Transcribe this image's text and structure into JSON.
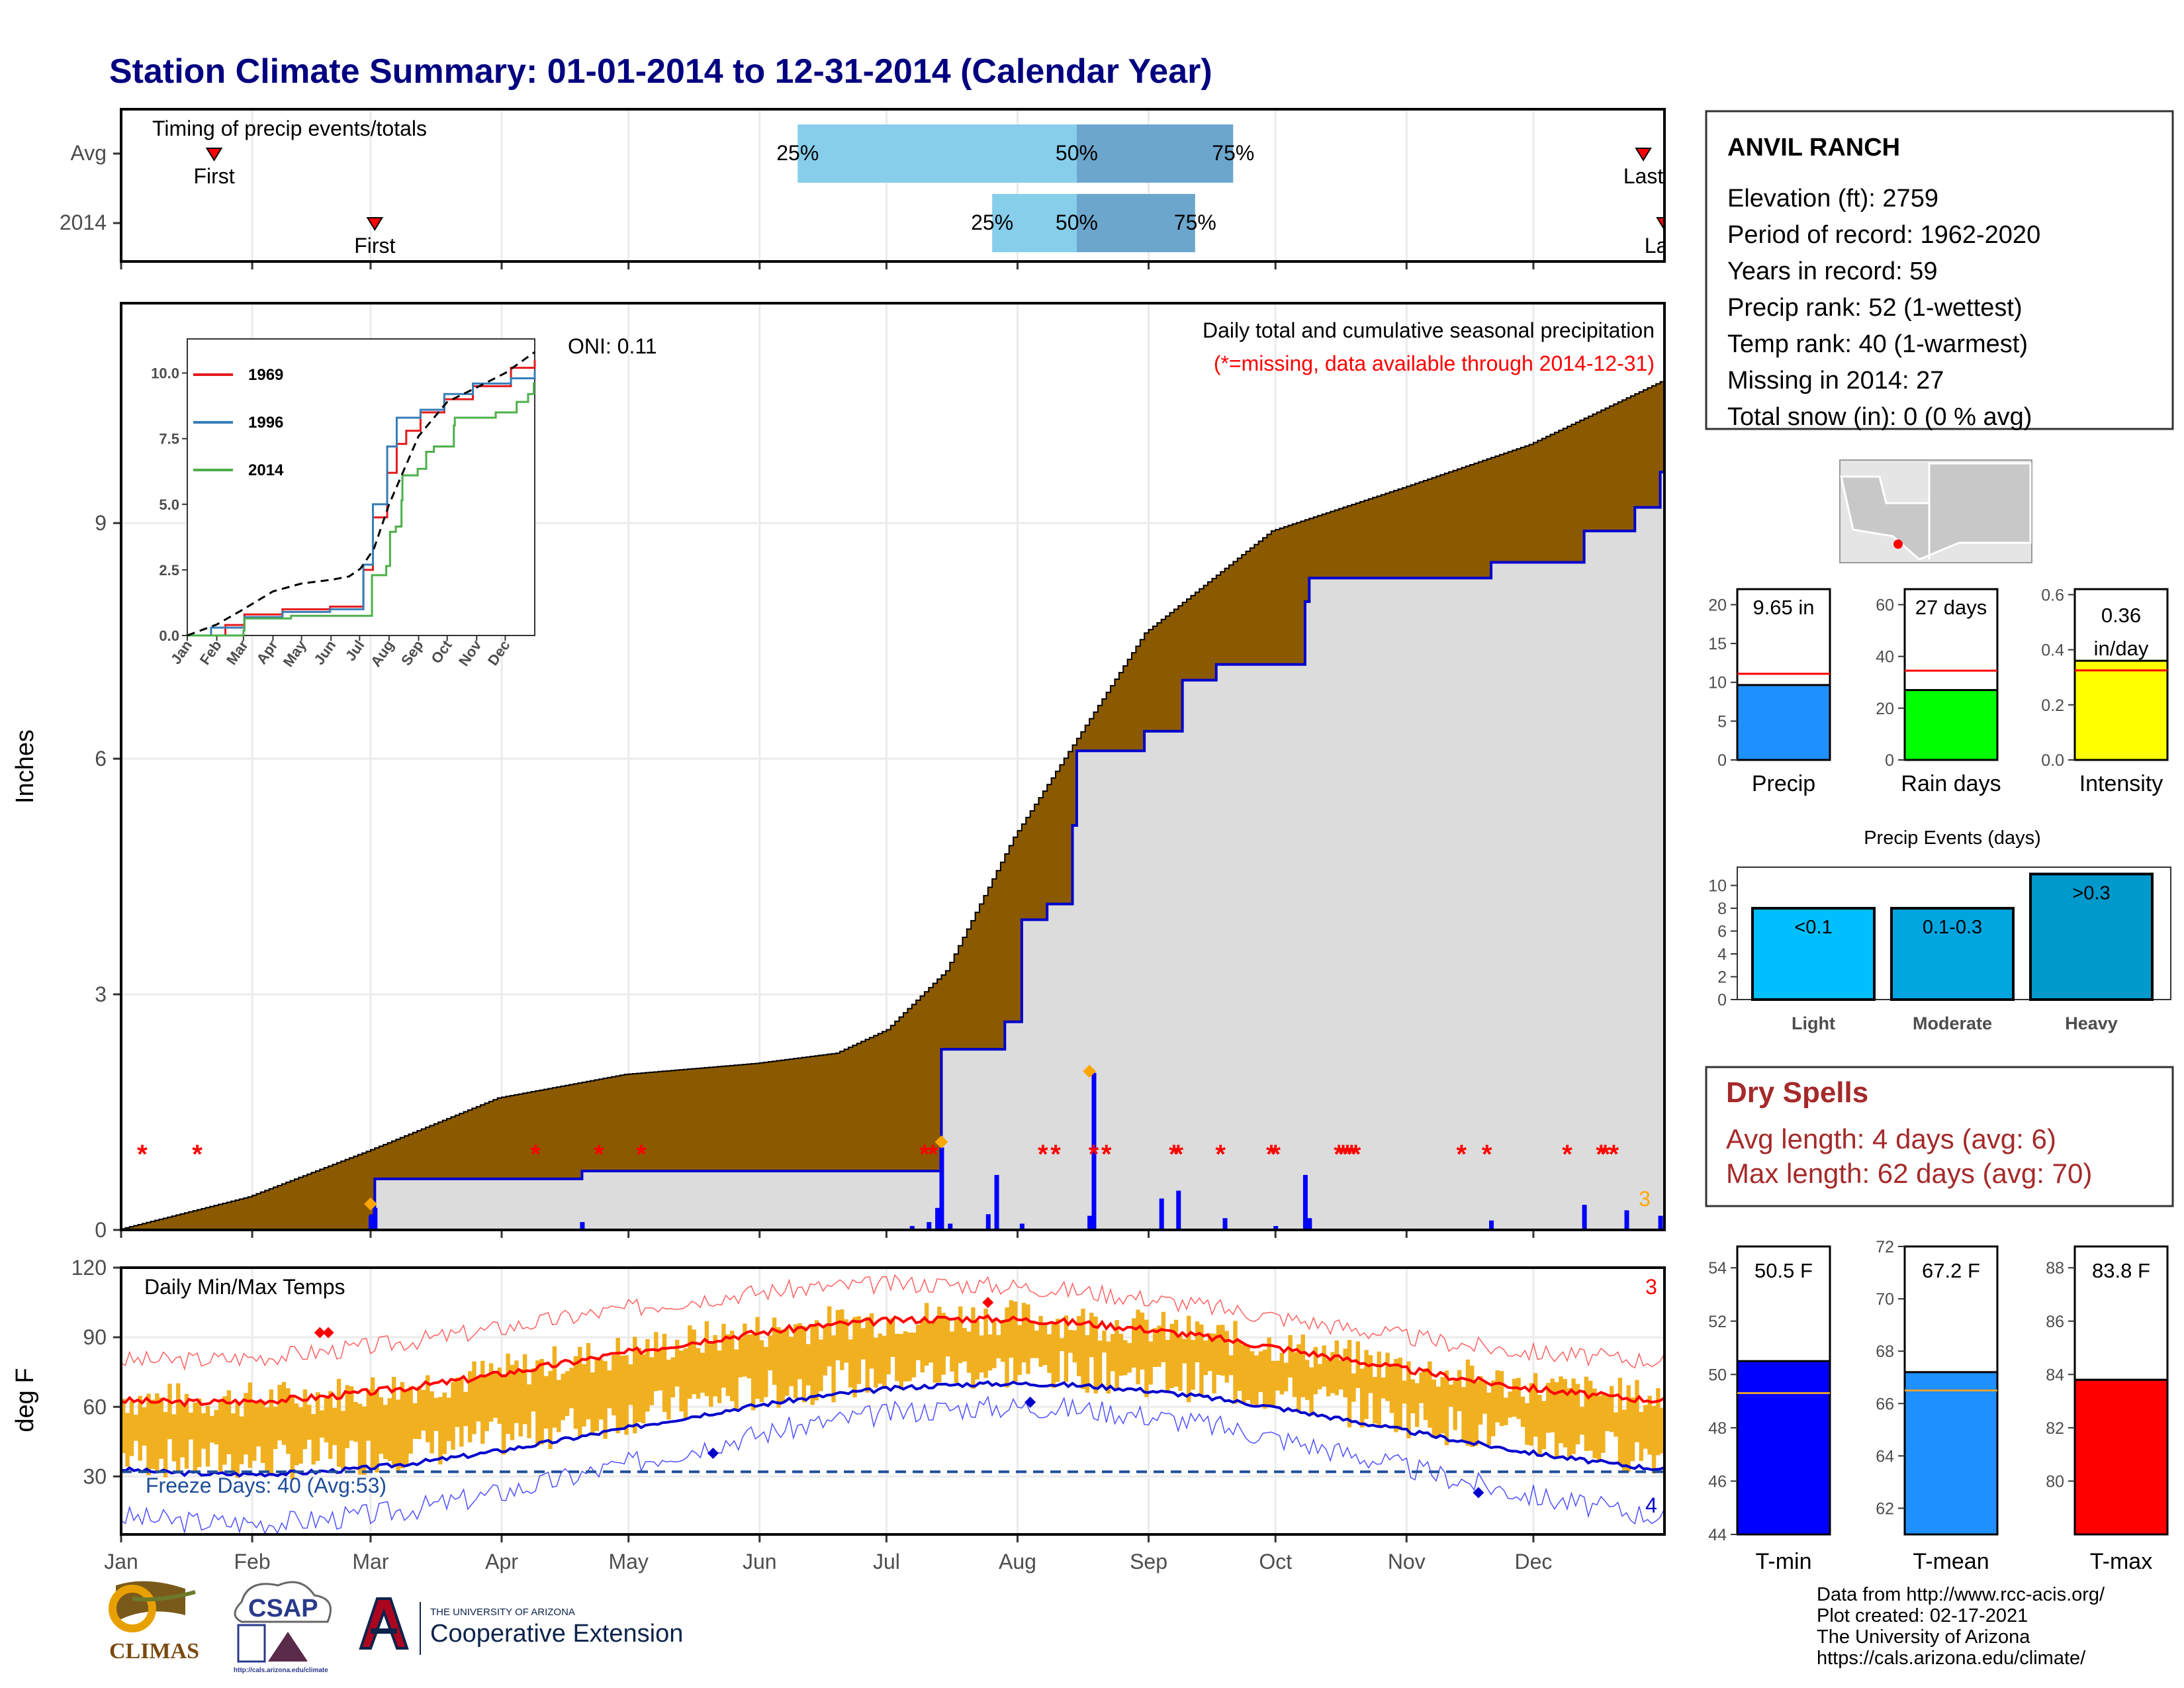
{
  "title": "Station Climate Summary: 01-01-2014 to 12-31-2014 (Calendar Year)",
  "colors": {
    "title": "#000080",
    "precip_fill": "#8B5A00",
    "precip_line": "#0000CD",
    "cum_2014_bg": "#DCDCDC",
    "timing_light": "#87CEEB",
    "timing_dark": "#6CA6CD",
    "temp_bar": "#F0B020",
    "tmax_avg": "#FF0000",
    "tmin_avg": "#0000CD",
    "missing": "#FF0000",
    "dry_spells": "#A52A2A"
  },
  "months": [
    "Jan",
    "Feb",
    "Mar",
    "Apr",
    "May",
    "Jun",
    "Jul",
    "Aug",
    "Sep",
    "Oct",
    "Nov",
    "Dec"
  ],
  "timing": {
    "title": "Timing of precip events/totals",
    "rows": [
      {
        "label": "Avg",
        "first_label": "First",
        "last_label": "Last",
        "p25": "25%",
        "p50": "50%",
        "p75": "75%",
        "first_doy": 22,
        "last_doy": 360,
        "q25_doy": 160,
        "q50_doy": 226,
        "q75_doy": 263
      },
      {
        "label": "2014",
        "first_label": "First",
        "last_label": "Last",
        "p25": "25%",
        "p50": "50%",
        "p75": "75%",
        "first_doy": 60,
        "last_doy": 365,
        "q25_doy": 206,
        "q50_doy": 226,
        "q75_doy": 254
      }
    ]
  },
  "precip": {
    "title": "Daily total and cumulative seasonal precipitation",
    "note": "(*=missing, data available through 2014-12-31)",
    "ylabel": "Inches",
    "ylim": [
      0,
      11.8
    ],
    "yticks": [
      "0",
      "3",
      "6",
      "9"
    ],
    "oni": "ONI: 0.11",
    "corner_count": "3",
    "avg_cum_points": [
      [
        0,
        0
      ],
      [
        31,
        0.42
      ],
      [
        59,
        1.0
      ],
      [
        90,
        1.68
      ],
      [
        120,
        1.98
      ],
      [
        151,
        2.12
      ],
      [
        170,
        2.25
      ],
      [
        182,
        2.55
      ],
      [
        196,
        3.3
      ],
      [
        212,
        5.0
      ],
      [
        243,
        7.6
      ],
      [
        273,
        8.9
      ],
      [
        304,
        9.45
      ],
      [
        334,
        10.0
      ],
      [
        365,
        10.8
      ]
    ],
    "cum_2014_steps": [
      [
        0,
        0
      ],
      [
        59,
        0.18
      ],
      [
        60,
        0.65
      ],
      [
        109,
        0.75
      ],
      [
        191,
        0.75
      ],
      [
        194,
        2.3
      ],
      [
        209,
        2.65
      ],
      [
        213,
        3.95
      ],
      [
        219,
        4.15
      ],
      [
        225,
        5.15
      ],
      [
        226,
        6.1
      ],
      [
        242,
        6.35
      ],
      [
        251,
        7.0
      ],
      [
        259,
        7.2
      ],
      [
        280,
        8.0
      ],
      [
        281,
        8.3
      ],
      [
        324,
        8.5
      ],
      [
        346,
        8.9
      ],
      [
        358,
        9.2
      ],
      [
        364,
        9.65
      ]
    ],
    "daily_bars": [
      [
        59,
        0.18
      ],
      [
        60,
        0.28
      ],
      [
        109,
        0.1
      ],
      [
        187,
        0.05
      ],
      [
        191,
        0.1
      ],
      [
        193,
        0.28
      ],
      [
        194,
        1.05
      ],
      [
        196,
        0.08
      ],
      [
        205,
        0.2
      ],
      [
        207,
        0.7
      ],
      [
        213,
        0.08
      ],
      [
        229,
        0.18
      ],
      [
        230,
        2.0
      ],
      [
        246,
        0.4
      ],
      [
        250,
        0.5
      ],
      [
        261,
        0.15
      ],
      [
        273,
        0.05
      ],
      [
        280,
        0.7
      ],
      [
        281,
        0.15
      ],
      [
        324,
        0.12
      ],
      [
        346,
        0.32
      ],
      [
        356,
        0.25
      ],
      [
        364,
        0.18
      ]
    ],
    "max_markers": [
      [
        59,
        0.33
      ],
      [
        194,
        1.12
      ],
      [
        229,
        2.02
      ]
    ],
    "missing_days": [
      5,
      18,
      98,
      113,
      123,
      190,
      192,
      218,
      221,
      230,
      233,
      249,
      250,
      260,
      272,
      273,
      288,
      289,
      290,
      291,
      292,
      317,
      323,
      342,
      350,
      351,
      353
    ]
  },
  "inset": {
    "yticks": [
      "0.0",
      "2.5",
      "5.0",
      "7.5",
      "10.0"
    ],
    "months": [
      "Jan",
      "Feb",
      "Mar",
      "Apr",
      "May",
      "Jun",
      "Jul",
      "Aug",
      "Sep",
      "Oct",
      "Nov",
      "Dec"
    ],
    "legend": [
      {
        "name": "1969",
        "color": "#E41A1C"
      },
      {
        "name": "1996",
        "color": "#377EB8"
      },
      {
        "name": "2014",
        "color": "#4DAF4A"
      }
    ],
    "series": [
      {
        "name": "1969",
        "points": [
          [
            0,
            0
          ],
          [
            40,
            0.4
          ],
          [
            60,
            0.8
          ],
          [
            100,
            1.0
          ],
          [
            150,
            1.1
          ],
          [
            180,
            1.1
          ],
          [
            185,
            2.5
          ],
          [
            195,
            4.5
          ],
          [
            210,
            6.2
          ],
          [
            220,
            7.3
          ],
          [
            230,
            7.8
          ],
          [
            245,
            8.5
          ],
          [
            270,
            9.0
          ],
          [
            300,
            9.5
          ],
          [
            340,
            10.2
          ],
          [
            365,
            10.5
          ]
        ]
      },
      {
        "name": "1996",
        "points": [
          [
            0,
            0
          ],
          [
            25,
            0.3
          ],
          [
            60,
            0.7
          ],
          [
            100,
            0.9
          ],
          [
            150,
            1.0
          ],
          [
            180,
            1.0
          ],
          [
            185,
            2.7
          ],
          [
            195,
            5.0
          ],
          [
            210,
            7.2
          ],
          [
            220,
            8.3
          ],
          [
            245,
            8.6
          ],
          [
            270,
            9.2
          ],
          [
            300,
            9.6
          ],
          [
            340,
            9.8
          ],
          [
            365,
            10.1
          ]
        ]
      },
      {
        "name": "2014",
        "points": [
          [
            0,
            0
          ],
          [
            59,
            0.18
          ],
          [
            60,
            0.65
          ],
          [
            109,
            0.75
          ],
          [
            191,
            0.75
          ],
          [
            194,
            2.3
          ],
          [
            209,
            2.65
          ],
          [
            213,
            3.95
          ],
          [
            219,
            4.15
          ],
          [
            225,
            5.15
          ],
          [
            226,
            6.1
          ],
          [
            242,
            6.35
          ],
          [
            251,
            7.0
          ],
          [
            259,
            7.2
          ],
          [
            280,
            8.0
          ],
          [
            281,
            8.3
          ],
          [
            324,
            8.5
          ],
          [
            346,
            8.9
          ],
          [
            358,
            9.2
          ],
          [
            364,
            9.65
          ]
        ]
      }
    ],
    "avg_points": [
      [
        0,
        0
      ],
      [
        31,
        0.42
      ],
      [
        59,
        1.0
      ],
      [
        90,
        1.68
      ],
      [
        120,
        1.98
      ],
      [
        151,
        2.12
      ],
      [
        170,
        2.25
      ],
      [
        182,
        2.55
      ],
      [
        196,
        3.3
      ],
      [
        212,
        5.0
      ],
      [
        243,
        7.6
      ],
      [
        273,
        8.9
      ],
      [
        304,
        9.45
      ],
      [
        334,
        10.0
      ],
      [
        365,
        10.8
      ]
    ]
  },
  "temps": {
    "title": "Daily Min/Max Temps",
    "ylabel": "deg F",
    "ylim": [
      5,
      120
    ],
    "yticks": [
      "30",
      "60",
      "90",
      "120"
    ],
    "freeze_label": "Freeze Days: 40 (Avg:53)",
    "corner_top": "3",
    "corner_bottom": "4",
    "tmax_avg": {
      "min": 62,
      "max": 98,
      "peak_doy": 200
    },
    "tmin_avg": {
      "min": 31,
      "max": 70,
      "peak_doy": 210
    },
    "tmax_record": {
      "min": 80,
      "max": 113,
      "peak_doy": 190
    },
    "tmin_record": {
      "min": 10,
      "max": 60,
      "peak_doy": 210
    },
    "freeze_line": 32
  },
  "station": {
    "name": "ANVIL RANCH",
    "lines": [
      "Elevation (ft): 2759",
      "Period of record: 1962-2020",
      "Years in record: 59",
      "Precip rank: 52 (1-wettest)",
      "Temp rank: 40 (1-warmest)",
      "Missing in 2014: 27",
      "Total snow (in): 0 (0 % avg)"
    ]
  },
  "precip_summary": [
    {
      "label": "Precip",
      "value_text": "9.65 in",
      "value": 9.65,
      "avg": 11.1,
      "ylim": [
        0,
        22
      ],
      "yticks": [
        "0",
        "5",
        "10",
        "15",
        "20"
      ],
      "tick_vals": [
        0,
        5,
        10,
        15,
        20
      ],
      "color": "#1E90FF"
    },
    {
      "label": "Rain days",
      "value_text": "27 days",
      "value": 27,
      "avg": 34.5,
      "ylim": [
        0,
        66
      ],
      "yticks": [
        "0",
        "20",
        "40",
        "60"
      ],
      "tick_vals": [
        0,
        20,
        40,
        60
      ],
      "color": "#00FF00"
    },
    {
      "label": "Intensity",
      "value_text": "0.36 in/day",
      "value": 0.36,
      "avg": 0.325,
      "ylim": [
        0,
        0.62
      ],
      "yticks": [
        "0.0",
        "0.2",
        "0.4",
        "0.6"
      ],
      "tick_vals": [
        0,
        0.2,
        0.4,
        0.6
      ],
      "color": "#FFFF00"
    }
  ],
  "events": {
    "title": "Precip Events (days)",
    "categories": [
      "Light",
      "Moderate",
      "Heavy"
    ],
    "bar_labels": [
      "<0.1",
      "0.1-0.3",
      ">0.3"
    ],
    "values": [
      8,
      8,
      11
    ],
    "colors": [
      "#00BFFF",
      "#00A5E0",
      "#0099CC"
    ],
    "yticks": [
      "0",
      "2",
      "4",
      "6",
      "8",
      "10"
    ]
  },
  "dry_spells": {
    "title": "Dry Spells",
    "avg": "Avg length: 4 days (avg: 6)",
    "max": "Max length: 62 days (avg: 70)"
  },
  "temp_summary": [
    {
      "label": "T-min",
      "value_text": "50.5 F",
      "value": 50.5,
      "avg": 49.3,
      "ylim": [
        44,
        54.8
      ],
      "yticks": [
        "44",
        "46",
        "48",
        "50",
        "52",
        "54"
      ],
      "tick_vals": [
        44,
        46,
        48,
        50,
        52,
        54
      ],
      "color": "#0000FF"
    },
    {
      "label": "T-mean",
      "value_text": "67.2 F",
      "value": 67.2,
      "avg": 66.5,
      "ylim": [
        61,
        72
      ],
      "yticks": [
        "62",
        "64",
        "66",
        "68",
        "70",
        "72"
      ],
      "tick_vals": [
        62,
        64,
        66,
        68,
        70,
        72
      ],
      "color": "#1E90FF"
    },
    {
      "label": "T-max",
      "value_text": "83.8 F",
      "value": 83.8,
      "avg": 83.8,
      "ylim": [
        78,
        88.8
      ],
      "yticks": [
        "80",
        "82",
        "84",
        "86",
        "88"
      ],
      "tick_vals": [
        80,
        82,
        84,
        86,
        88
      ],
      "color": "#FF0000"
    }
  ],
  "footer": [
    "Data from http://www.rcc-acis.org/",
    "Plot created: 02-17-2021",
    "The University of Arizona",
    "https://cals.arizona.edu/climate/"
  ],
  "logos": {
    "climas": "CLIMAS",
    "csap": "CSAP",
    "csap_url": "http://cals.arizona.edu/climate",
    "ua_small": "THE UNIVERSITY OF ARIZONA",
    "ua_big": "Cooperative Extension"
  }
}
